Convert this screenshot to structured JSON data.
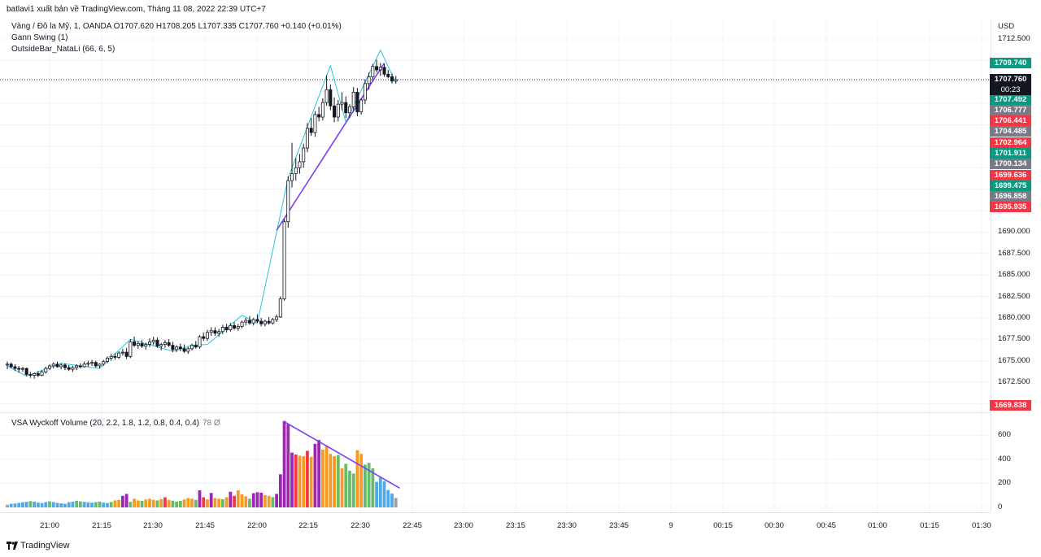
{
  "header": {
    "publisher": "batlavi1 xuất bản về TradingView.com, Tháng 11 08, 2022 22:39 UTC+7"
  },
  "legend": {
    "symbol_line": "Vàng / Đô la Mỹ, 1, OANDA  O1707.620  H1708.205  L1707.335  C1707.760  +0.140 (+0.01%)",
    "gann": "Gann Swing (1)",
    "outside_bar": "OutsideBar_NataLi (66, 6, 5)",
    "volume": "VSA Wyckoff Volume (20, 2.2, 1.8, 1.2, 0.8, 0.4, 0.4)",
    "volume_value": "78  Ø"
  },
  "price_axis": {
    "currency": "USD",
    "ticks": [
      "1712.500",
      "1690.000",
      "1687.500",
      "1685.000",
      "1682.500",
      "1680.000",
      "1677.500",
      "1675.000",
      "1672.500"
    ]
  },
  "price_tags": [
    {
      "label": "1709.740",
      "price": 1709.74,
      "color": "#089981"
    },
    {
      "label": "1707.492",
      "price": 1707.492,
      "color": "#089981"
    },
    {
      "label": "1706.777",
      "price": 1706.777,
      "color": "#787b86"
    },
    {
      "label": "1706.441",
      "price": 1706.441,
      "color": "#f23645"
    },
    {
      "label": "1704.485",
      "price": 1704.485,
      "color": "#787b86"
    },
    {
      "label": "1702.964",
      "price": 1702.964,
      "color": "#f23645"
    },
    {
      "label": "1701.911",
      "price": 1701.911,
      "color": "#089981"
    },
    {
      "label": "1700.134",
      "price": 1700.134,
      "color": "#787b86"
    },
    {
      "label": "1699.636",
      "price": 1699.636,
      "color": "#f23645"
    },
    {
      "label": "1699.475",
      "price": 1699.475,
      "color": "#089981"
    },
    {
      "label": "1696.858",
      "price": 1696.858,
      "color": "#787b86"
    },
    {
      "label": "1695.935",
      "price": 1695.935,
      "color": "#f23645"
    },
    {
      "label": "1669.838",
      "price": 1669.838,
      "color": "#f23645"
    }
  ],
  "last_price": {
    "value": "1707.760",
    "countdown": "00:23"
  },
  "volume_axis": {
    "ticks": [
      "600",
      "400",
      "200",
      "0"
    ]
  },
  "time_axis": {
    "labels": [
      "21:00",
      "21:15",
      "21:30",
      "21:45",
      "22:00",
      "22:15",
      "22:30",
      "22:45",
      "23:00",
      "23:15",
      "23:30",
      "23:45",
      "9",
      "00:15",
      "00:30",
      "00:45",
      "01:00",
      "01:15",
      "01:30"
    ]
  },
  "footer": {
    "brand": "TradingView"
  },
  "chart_data": {
    "type": "candlestick",
    "symbol": "XAUUSD",
    "timeframe": "1",
    "ylim": [
      1669.5,
      1714.5
    ],
    "volume_ylim": [
      0,
      760
    ],
    "candles_ohlc": [
      [
        1674.5,
        1674.9,
        1674.0,
        1674.6
      ],
      [
        1674.6,
        1674.8,
        1674.1,
        1674.3
      ],
      [
        1674.3,
        1674.6,
        1673.8,
        1674.1
      ],
      [
        1674.1,
        1674.4,
        1673.6,
        1674.0
      ],
      [
        1674.0,
        1674.3,
        1673.7,
        1674.1
      ],
      [
        1674.1,
        1674.2,
        1673.2,
        1673.4
      ],
      [
        1673.4,
        1673.7,
        1673.0,
        1673.3
      ],
      [
        1673.3,
        1673.6,
        1672.9,
        1673.5
      ],
      [
        1673.5,
        1673.8,
        1673.1,
        1673.3
      ],
      [
        1673.3,
        1673.9,
        1673.2,
        1673.7
      ],
      [
        1673.7,
        1674.3,
        1673.5,
        1674.1
      ],
      [
        1674.1,
        1674.6,
        1673.9,
        1674.4
      ],
      [
        1674.4,
        1674.8,
        1674.1,
        1674.6
      ],
      [
        1674.6,
        1674.9,
        1674.2,
        1674.3
      ],
      [
        1674.3,
        1674.7,
        1674.0,
        1674.5
      ],
      [
        1674.5,
        1674.7,
        1673.9,
        1674.2
      ],
      [
        1674.2,
        1674.5,
        1673.8,
        1674.0
      ],
      [
        1674.0,
        1674.4,
        1673.7,
        1674.2
      ],
      [
        1674.2,
        1674.6,
        1673.9,
        1674.4
      ],
      [
        1674.4,
        1674.7,
        1674.1,
        1674.3
      ],
      [
        1674.3,
        1674.9,
        1674.2,
        1674.6
      ],
      [
        1674.6,
        1675.0,
        1674.3,
        1674.7
      ],
      [
        1674.7,
        1675.1,
        1674.4,
        1674.8
      ],
      [
        1674.8,
        1675.0,
        1674.2,
        1674.4
      ],
      [
        1674.4,
        1674.7,
        1674.1,
        1674.6
      ],
      [
        1674.6,
        1675.1,
        1674.4,
        1674.9
      ],
      [
        1674.9,
        1675.5,
        1674.7,
        1675.3
      ],
      [
        1675.3,
        1675.8,
        1675.0,
        1675.5
      ],
      [
        1675.5,
        1675.9,
        1675.1,
        1675.4
      ],
      [
        1675.4,
        1676.1,
        1675.2,
        1675.9
      ],
      [
        1675.9,
        1676.4,
        1675.6,
        1676.0
      ],
      [
        1676.0,
        1676.5,
        1675.2,
        1675.5
      ],
      [
        1675.5,
        1677.5,
        1675.3,
        1677.2
      ],
      [
        1677.2,
        1677.8,
        1676.6,
        1676.8
      ],
      [
        1676.8,
        1677.3,
        1676.4,
        1677.0
      ],
      [
        1677.0,
        1677.4,
        1676.5,
        1676.7
      ],
      [
        1676.7,
        1677.1,
        1676.3,
        1676.9
      ],
      [
        1676.9,
        1677.6,
        1676.6,
        1677.2
      ],
      [
        1677.2,
        1677.8,
        1676.8,
        1677.4
      ],
      [
        1677.4,
        1677.7,
        1676.5,
        1676.7
      ],
      [
        1676.7,
        1677.1,
        1676.2,
        1676.9
      ],
      [
        1676.9,
        1677.4,
        1676.5,
        1677.1
      ],
      [
        1677.1,
        1677.5,
        1676.6,
        1676.8
      ],
      [
        1676.8,
        1677.2,
        1676.0,
        1676.3
      ],
      [
        1676.3,
        1676.8,
        1676.0,
        1676.6
      ],
      [
        1676.6,
        1677.0,
        1676.1,
        1676.4
      ],
      [
        1676.4,
        1676.9,
        1675.9,
        1676.1
      ],
      [
        1676.1,
        1676.6,
        1675.8,
        1676.4
      ],
      [
        1676.4,
        1677.0,
        1676.2,
        1676.8
      ],
      [
        1676.8,
        1677.3,
        1676.4,
        1676.6
      ],
      [
        1676.6,
        1678.0,
        1676.4,
        1677.8
      ],
      [
        1677.8,
        1678.3,
        1677.3,
        1677.6
      ],
      [
        1677.6,
        1678.6,
        1677.3,
        1678.3
      ],
      [
        1678.3,
        1678.9,
        1677.9,
        1678.5
      ],
      [
        1678.5,
        1678.9,
        1677.9,
        1678.2
      ],
      [
        1678.2,
        1678.7,
        1677.8,
        1678.4
      ],
      [
        1678.4,
        1679.2,
        1678.1,
        1678.9
      ],
      [
        1678.9,
        1679.3,
        1678.3,
        1678.6
      ],
      [
        1678.6,
        1679.4,
        1678.4,
        1679.1
      ],
      [
        1679.1,
        1679.5,
        1678.6,
        1678.8
      ],
      [
        1678.8,
        1679.3,
        1678.5,
        1679.0
      ],
      [
        1679.0,
        1679.7,
        1678.8,
        1679.5
      ],
      [
        1679.5,
        1680.0,
        1679.1,
        1679.7
      ],
      [
        1679.7,
        1680.2,
        1679.2,
        1679.4
      ],
      [
        1679.4,
        1680.0,
        1679.1,
        1679.8
      ],
      [
        1679.8,
        1680.4,
        1679.4,
        1679.6
      ],
      [
        1679.6,
        1680.0,
        1679.0,
        1679.3
      ],
      [
        1679.3,
        1679.8,
        1679.0,
        1679.6
      ],
      [
        1679.6,
        1680.1,
        1679.2,
        1679.4
      ],
      [
        1679.4,
        1680.0,
        1679.2,
        1679.8
      ],
      [
        1679.8,
        1680.4,
        1679.5,
        1680.1
      ],
      [
        1680.1,
        1682.5,
        1680.0,
        1682.2
      ],
      [
        1682.2,
        1691.5,
        1682.0,
        1691.2
      ],
      [
        1691.2,
        1696.5,
        1690.5,
        1696.0
      ],
      [
        1696.0,
        1700.4,
        1695.2,
        1696.8
      ],
      [
        1696.8,
        1698.6,
        1696.0,
        1697.5
      ],
      [
        1697.5,
        1699.1,
        1696.8,
        1698.2
      ],
      [
        1698.2,
        1700.3,
        1697.5,
        1699.8
      ],
      [
        1699.8,
        1702.7,
        1699.3,
        1702.1
      ],
      [
        1702.1,
        1703.3,
        1701.2,
        1701.6
      ],
      [
        1701.6,
        1704.1,
        1701.1,
        1703.7
      ],
      [
        1703.7,
        1704.6,
        1702.9,
        1703.4
      ],
      [
        1703.4,
        1705.6,
        1703.0,
        1705.1
      ],
      [
        1705.1,
        1708.3,
        1704.7,
        1706.6
      ],
      [
        1706.6,
        1707.2,
        1704.2,
        1704.7
      ],
      [
        1704.7,
        1705.7,
        1702.8,
        1703.4
      ],
      [
        1703.4,
        1705.4,
        1702.9,
        1704.9
      ],
      [
        1704.9,
        1706.3,
        1704.2,
        1705.1
      ],
      [
        1705.1,
        1705.8,
        1703.3,
        1703.9
      ],
      [
        1703.9,
        1704.9,
        1703.3,
        1704.6
      ],
      [
        1704.6,
        1706.9,
        1704.1,
        1706.3
      ],
      [
        1706.3,
        1706.8,
        1703.5,
        1704.0
      ],
      [
        1704.0,
        1705.6,
        1703.7,
        1705.4
      ],
      [
        1705.4,
        1707.8,
        1704.9,
        1707.3
      ],
      [
        1707.3,
        1708.6,
        1706.6,
        1708.1
      ],
      [
        1708.1,
        1709.6,
        1707.6,
        1709.3
      ],
      [
        1709.3,
        1710.1,
        1708.6,
        1708.9
      ],
      [
        1708.9,
        1709.7,
        1708.2,
        1709.2
      ],
      [
        1709.2,
        1709.6,
        1708.1,
        1708.4
      ],
      [
        1708.4,
        1708.9,
        1707.9,
        1708.1
      ],
      [
        1708.1,
        1708.5,
        1707.3,
        1707.6
      ],
      [
        1707.6,
        1708.2,
        1707.3,
        1707.76
      ]
    ],
    "volume_bars": [
      [
        22,
        "#9e9e9e"
      ],
      [
        30,
        "#4fa9e8"
      ],
      [
        33,
        "#4fa9e8"
      ],
      [
        38,
        "#4fa9e8"
      ],
      [
        42,
        "#4fa9e8"
      ],
      [
        46,
        "#4fa9e8"
      ],
      [
        52,
        "#66bb6a"
      ],
      [
        48,
        "#4fa9e8"
      ],
      [
        40,
        "#4fa9e8"
      ],
      [
        36,
        "#4fa9e8"
      ],
      [
        44,
        "#4fa9e8"
      ],
      [
        50,
        "#66bb6a"
      ],
      [
        44,
        "#4fa9e8"
      ],
      [
        37,
        "#4fa9e8"
      ],
      [
        34,
        "#4fa9e8"
      ],
      [
        30,
        "#4fa9e8"
      ],
      [
        43,
        "#4fa9e8"
      ],
      [
        48,
        "#4fa9e8"
      ],
      [
        55,
        "#66bb6a"
      ],
      [
        50,
        "#66bb6a"
      ],
      [
        46,
        "#4fa9e8"
      ],
      [
        42,
        "#4fa9e8"
      ],
      [
        39,
        "#4fa9e8"
      ],
      [
        44,
        "#66bb6a"
      ],
      [
        48,
        "#66bb6a"
      ],
      [
        40,
        "#4fa9e8"
      ],
      [
        36,
        "#4fa9e8"
      ],
      [
        45,
        "#66bb6a"
      ],
      [
        58,
        "#f59a23"
      ],
      [
        62,
        "#f59a23"
      ],
      [
        96,
        "#9c27b0"
      ],
      [
        112,
        "#9c27b0"
      ],
      [
        46,
        "#66bb6a"
      ],
      [
        72,
        "#f59a23"
      ],
      [
        58,
        "#f59a23"
      ],
      [
        54,
        "#66bb6a"
      ],
      [
        66,
        "#f59a23"
      ],
      [
        72,
        "#f59a23"
      ],
      [
        63,
        "#f59a23"
      ],
      [
        58,
        "#66bb6a"
      ],
      [
        68,
        "#f59a23"
      ],
      [
        84,
        "#f23645"
      ],
      [
        62,
        "#f59a23"
      ],
      [
        56,
        "#66bb6a"
      ],
      [
        48,
        "#66bb6a"
      ],
      [
        54,
        "#66bb6a"
      ],
      [
        66,
        "#f59a23"
      ],
      [
        78,
        "#f59a23"
      ],
      [
        72,
        "#f59a23"
      ],
      [
        62,
        "#66bb6a"
      ],
      [
        142,
        "#9c27b0"
      ],
      [
        84,
        "#f23645"
      ],
      [
        66,
        "#f59a23"
      ],
      [
        120,
        "#9c27b0"
      ],
      [
        78,
        "#f59a23"
      ],
      [
        72,
        "#f59a23"
      ],
      [
        68,
        "#66bb6a"
      ],
      [
        84,
        "#f59a23"
      ],
      [
        130,
        "#9c27b0"
      ],
      [
        96,
        "#f23645"
      ],
      [
        142,
        "#f59a23"
      ],
      [
        108,
        "#f59a23"
      ],
      [
        92,
        "#f59a23"
      ],
      [
        72,
        "#66bb6a"
      ],
      [
        118,
        "#9c27b0"
      ],
      [
        126,
        "#9c27b0"
      ],
      [
        122,
        "#9c27b0"
      ],
      [
        102,
        "#f59a23"
      ],
      [
        96,
        "#f59a23"
      ],
      [
        86,
        "#66bb6a"
      ],
      [
        112,
        "#9c27b0"
      ],
      [
        275,
        "#9c27b0"
      ],
      [
        718,
        "#9c27b0"
      ],
      [
        690,
        "#9c27b0"
      ],
      [
        455,
        "#9c27b0"
      ],
      [
        440,
        "#f23645"
      ],
      [
        430,
        "#f59a23"
      ],
      [
        425,
        "#f59a23"
      ],
      [
        470,
        "#f23645"
      ],
      [
        420,
        "#f59a23"
      ],
      [
        528,
        "#9c27b0"
      ],
      [
        560,
        "#9c27b0"
      ],
      [
        480,
        "#f59a23"
      ],
      [
        515,
        "#f59a23"
      ],
      [
        445,
        "#f59a23"
      ],
      [
        425,
        "#f59a23"
      ],
      [
        435,
        "#66bb6a"
      ],
      [
        325,
        "#f59a23"
      ],
      [
        362,
        "#66bb6a"
      ],
      [
        305,
        "#66bb6a"
      ],
      [
        282,
        "#66bb6a"
      ],
      [
        475,
        "#f59a23"
      ],
      [
        445,
        "#f59a23"
      ],
      [
        355,
        "#66bb6a"
      ],
      [
        370,
        "#66bb6a"
      ],
      [
        325,
        "#66bb6a"
      ],
      [
        212,
        "#4fa9e8"
      ],
      [
        250,
        "#4fa9e8"
      ],
      [
        218,
        "#4fa9e8"
      ],
      [
        145,
        "#4fa9e8"
      ],
      [
        115,
        "#4fa9e8"
      ],
      [
        78,
        "#9e9e9e"
      ]
    ],
    "gann_swing_points": [
      [
        0,
        1674.4
      ],
      [
        5,
        1673.2
      ],
      [
        14,
        1674.7
      ],
      [
        24,
        1674.1
      ],
      [
        32,
        1677.5
      ],
      [
        43,
        1676.1
      ],
      [
        48,
        1676.8
      ],
      [
        52,
        1676.9
      ],
      [
        61,
        1680.3
      ],
      [
        65,
        1679.4
      ],
      [
        73,
        1696.3
      ],
      [
        84,
        1709.4
      ],
      [
        88,
        1702.8
      ],
      [
        97,
        1711.2
      ],
      [
        101,
        1707.4
      ]
    ],
    "trend_line_price": [
      [
        70,
        1690.2
      ],
      [
        98,
        1709.7
      ]
    ],
    "trend_line_volume": [
      [
        72,
        712
      ],
      [
        102,
        160
      ]
    ]
  }
}
